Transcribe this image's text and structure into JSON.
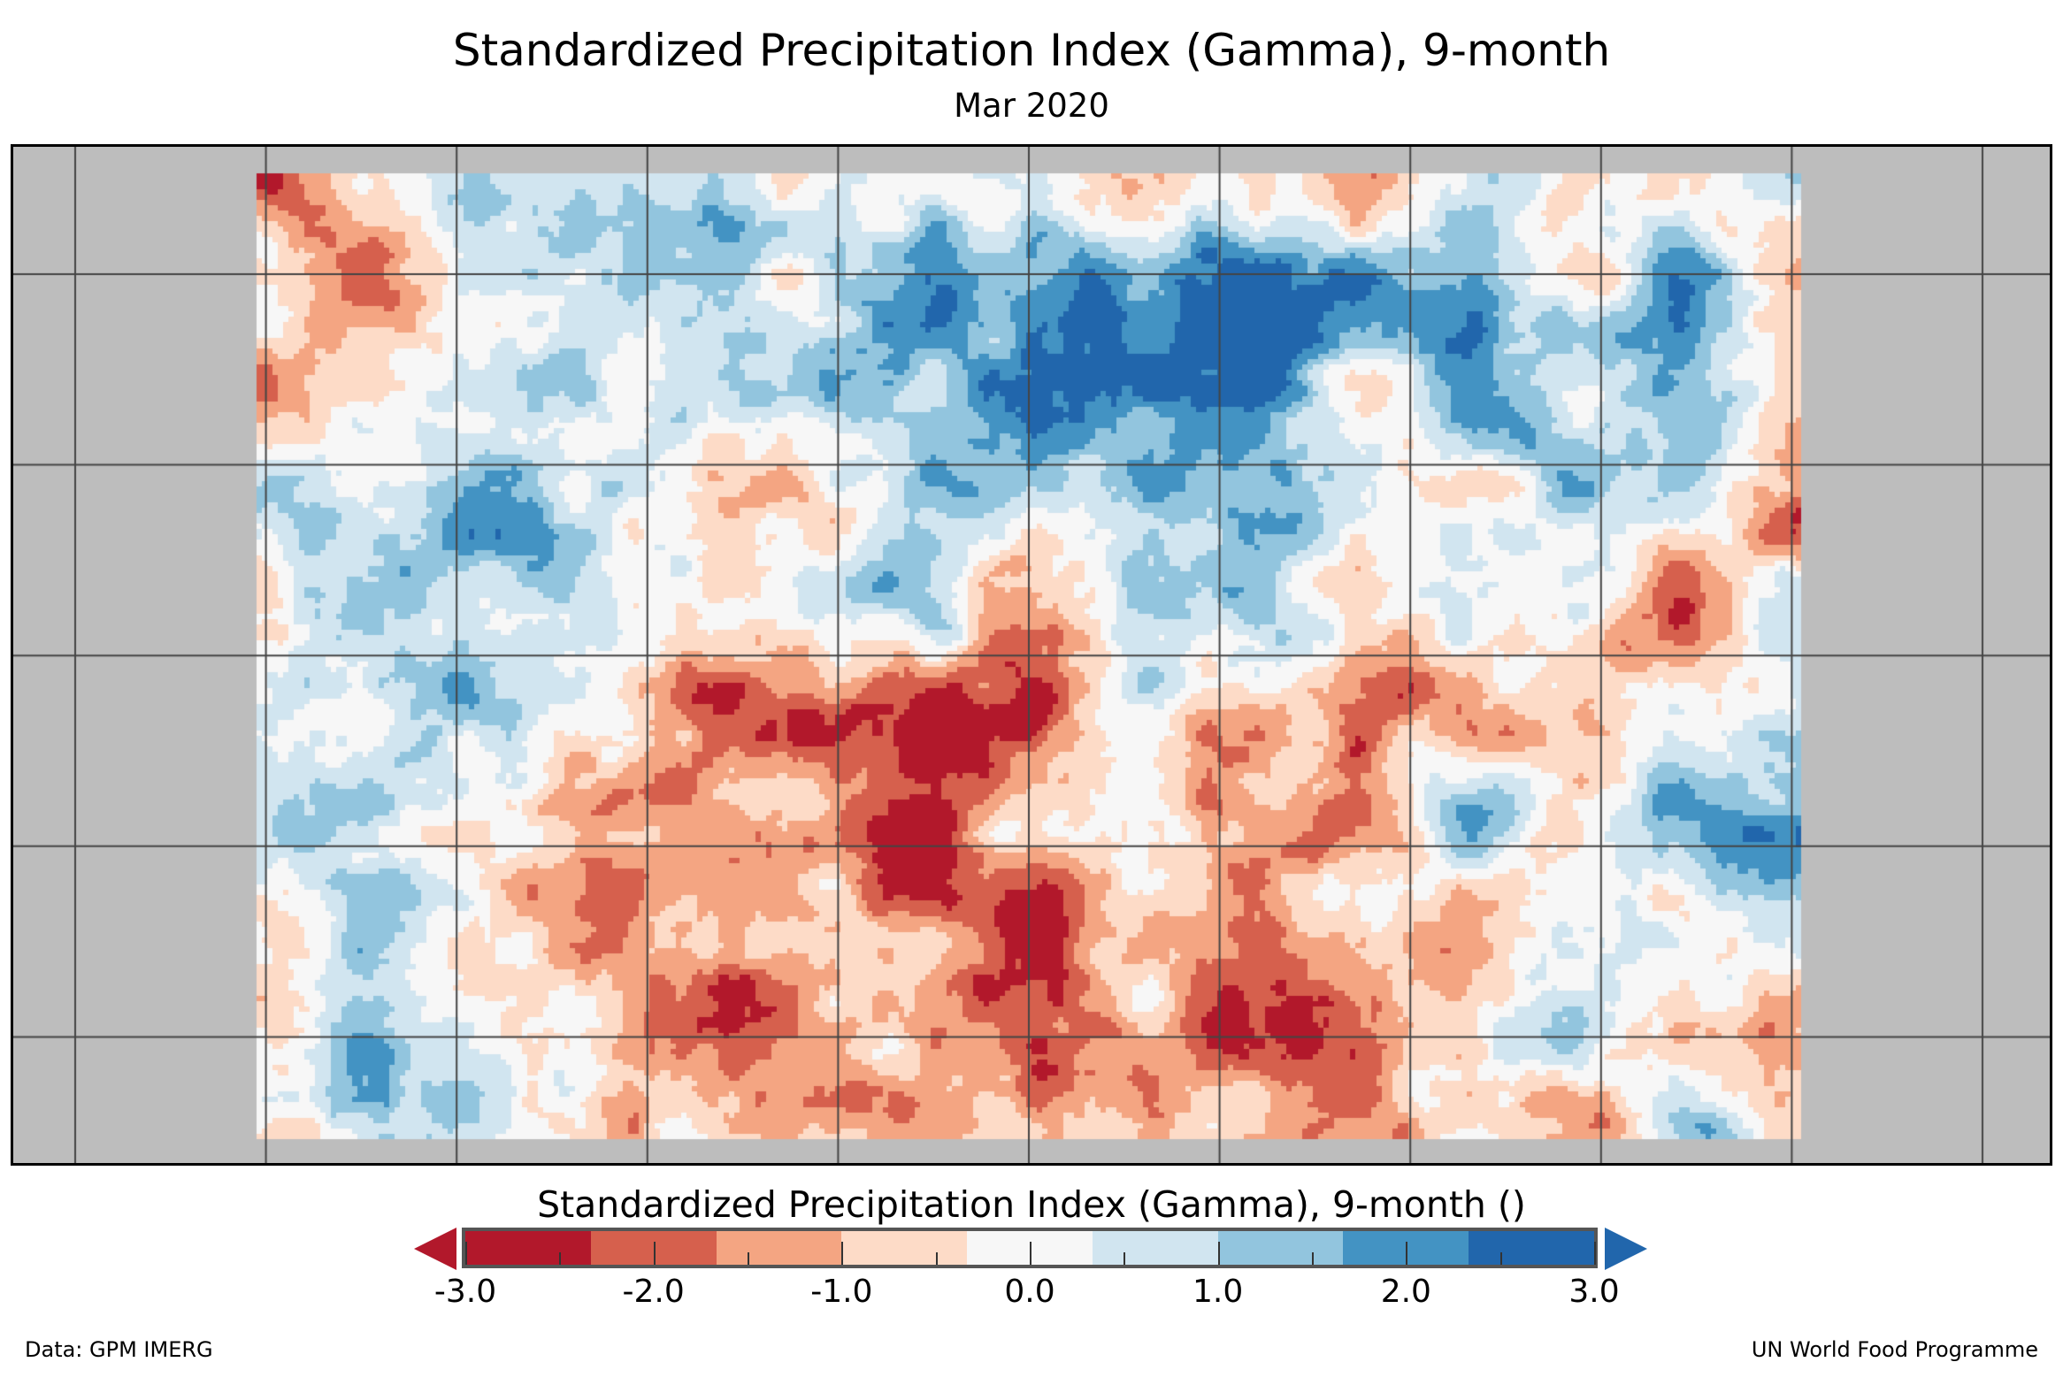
{
  "title": "Standardized Precipitation Index (Gamma), 9-month",
  "subtitle": "Mar 2020",
  "colorbar": {
    "label": "Standardized Precipitation Index (Gamma), 9-month ()",
    "colors": [
      "#b2182b",
      "#d6604d",
      "#f4a582",
      "#fddbc7",
      "#f7f7f7",
      "#d1e5f0",
      "#92c5de",
      "#4393c3",
      "#2166ac"
    ],
    "range": [
      -3.0,
      3.0
    ],
    "tick_labels": [
      "-3.0",
      "-2.0",
      "-1.0",
      "0.0",
      "1.0",
      "2.0",
      "3.0"
    ],
    "tick_values": [
      -3,
      -2,
      -1,
      0,
      1,
      2,
      3
    ],
    "minor_tick_values": [
      -2.5,
      -1.5,
      -0.5,
      0.5,
      1.5,
      2.5
    ],
    "extend": "both"
  },
  "map": {
    "background_color": "#bdbdbd",
    "region": "South and East Asia, Maritime Continent, Western Pacific",
    "pattern_summary": "Dry (negative SPI) over Maritime Continent, Indian Ocean south of Sumatra and northern Australia; wet (positive SPI) over India, China, Japan and western Pacific"
  },
  "footer": {
    "source": "Data: GPM IMERG",
    "credit": "UN World Food Programme"
  }
}
